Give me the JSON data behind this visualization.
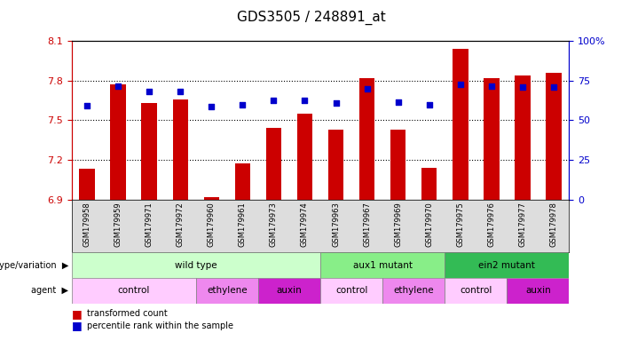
{
  "title": "GDS3505 / 248891_at",
  "samples": [
    "GSM179958",
    "GSM179959",
    "GSM179971",
    "GSM179972",
    "GSM179960",
    "GSM179961",
    "GSM179973",
    "GSM179974",
    "GSM179963",
    "GSM179967",
    "GSM179969",
    "GSM179970",
    "GSM179975",
    "GSM179976",
    "GSM179977",
    "GSM179978"
  ],
  "bar_values": [
    7.13,
    7.77,
    7.63,
    7.66,
    6.92,
    7.17,
    7.44,
    7.55,
    7.43,
    7.82,
    7.43,
    7.14,
    8.04,
    7.82,
    7.84,
    7.86
  ],
  "percentile_values": [
    7.61,
    7.76,
    7.72,
    7.72,
    7.6,
    7.62,
    7.65,
    7.65,
    7.63,
    7.74,
    7.64,
    7.62,
    7.77,
    7.76,
    7.75,
    7.75
  ],
  "ymin": 6.9,
  "ymax": 8.1,
  "yticks": [
    6.9,
    7.2,
    7.5,
    7.8,
    8.1
  ],
  "bar_color": "#cc0000",
  "dot_color": "#0000cc",
  "genotype_groups": [
    {
      "label": "wild type",
      "start": 0,
      "end": 8,
      "color": "#ccffcc"
    },
    {
      "label": "aux1 mutant",
      "start": 8,
      "end": 12,
      "color": "#88ee88"
    },
    {
      "label": "ein2 mutant",
      "start": 12,
      "end": 16,
      "color": "#33bb55"
    }
  ],
  "agent_groups": [
    {
      "label": "control",
      "start": 0,
      "end": 4,
      "color": "#ffccff"
    },
    {
      "label": "ethylene",
      "start": 4,
      "end": 6,
      "color": "#ee88ee"
    },
    {
      "label": "auxin",
      "start": 6,
      "end": 8,
      "color": "#cc22cc"
    },
    {
      "label": "control",
      "start": 8,
      "end": 10,
      "color": "#ffccff"
    },
    {
      "label": "ethylene",
      "start": 10,
      "end": 12,
      "color": "#ee88ee"
    },
    {
      "label": "control",
      "start": 12,
      "end": 14,
      "color": "#ffccff"
    },
    {
      "label": "auxin",
      "start": 14,
      "end": 16,
      "color": "#cc22cc"
    }
  ],
  "tick_label_color": "#cc0000",
  "right_yaxis_color": "#0000cc",
  "title_fontsize": 11,
  "tick_fontsize": 8
}
